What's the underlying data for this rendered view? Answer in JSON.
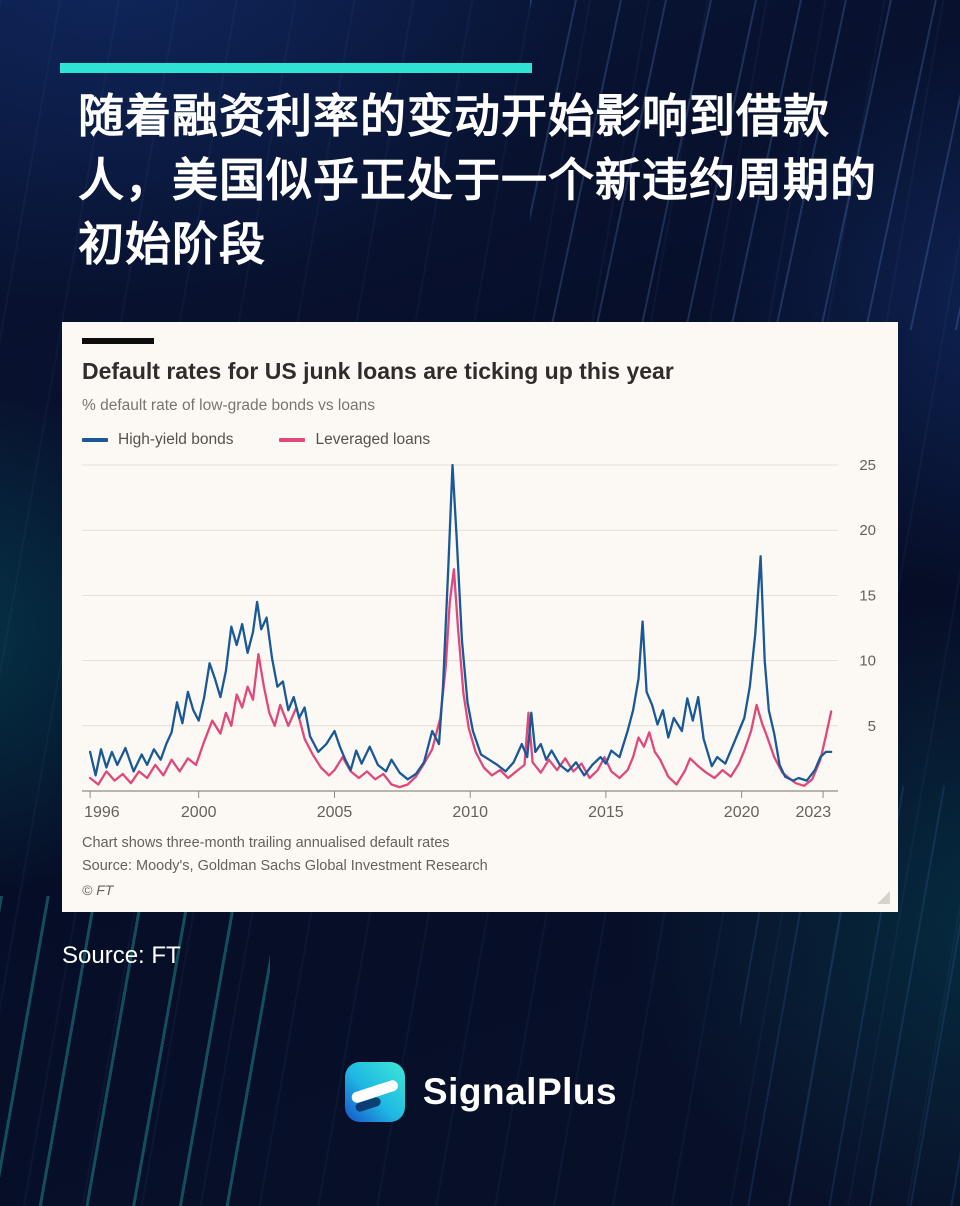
{
  "page": {
    "headline": "随着融资利率的变动开始影响到借款人，美国似乎正处于一个新违约周期的初始阶段",
    "source_caption": "Source: FT",
    "brand": {
      "name": "SignalPlus"
    },
    "accent_color": "#30e2d2",
    "background_color": "#081129"
  },
  "chart_card": {
    "title": "Default rates for US junk loans are ticking up this year",
    "subtitle": "% default rate of low-grade bonds vs loans",
    "footnote_line1": "Chart shows three-month trailing annualised default rates",
    "footnote_line2": "Source: Moody's, Goldman Sachs Global Investment Research",
    "copyright": "© FT",
    "background_color": "#fcf9f5"
  },
  "chart_data": {
    "type": "line",
    "title": "Default rates for US junk loans are ticking up this year",
    "subtitle": "% default rate of low-grade bonds vs loans",
    "xlabel": "",
    "ylabel": "% default rate",
    "xlim": [
      1995.7,
      2023.55
    ],
    "ylim": [
      0,
      25
    ],
    "yticks": [
      5,
      10,
      15,
      20,
      25
    ],
    "xticks": [
      1996,
      2000,
      2005,
      2010,
      2015,
      2020,
      2023
    ],
    "grid": true,
    "legend_position": "top-left",
    "series": [
      {
        "name": "High-yield bonds",
        "color": "#1a5896",
        "x": [
          1996.0,
          1996.2,
          1996.4,
          1996.6,
          1996.8,
          1997.0,
          1997.3,
          1997.6,
          1997.9,
          1998.1,
          1998.35,
          1998.6,
          1998.8,
          1999.0,
          1999.2,
          1999.4,
          1999.6,
          1999.8,
          2000.0,
          2000.2,
          2000.4,
          2000.6,
          2000.8,
          2001.0,
          2001.2,
          2001.4,
          2001.6,
          2001.8,
          2002.0,
          2002.15,
          2002.3,
          2002.5,
          2002.7,
          2002.9,
          2003.1,
          2003.3,
          2003.5,
          2003.7,
          2003.9,
          2004.1,
          2004.4,
          2004.7,
          2005.0,
          2005.2,
          2005.4,
          2005.6,
          2005.8,
          2006.0,
          2006.3,
          2006.6,
          2006.9,
          2007.1,
          2007.4,
          2007.7,
          2008.0,
          2008.3,
          2008.6,
          2008.85,
          2009.0,
          2009.2,
          2009.35,
          2009.5,
          2009.7,
          2009.9,
          2010.1,
          2010.4,
          2010.7,
          2011.0,
          2011.3,
          2011.6,
          2011.9,
          2012.1,
          2012.25,
          2012.4,
          2012.6,
          2012.8,
          2013.0,
          2013.3,
          2013.6,
          2013.9,
          2014.2,
          2014.5,
          2014.8,
          2015.0,
          2015.2,
          2015.5,
          2015.8,
          2016.0,
          2016.2,
          2016.35,
          2016.5,
          2016.7,
          2016.9,
          2017.1,
          2017.3,
          2017.5,
          2017.8,
          2018.0,
          2018.2,
          2018.4,
          2018.6,
          2018.9,
          2019.1,
          2019.4,
          2019.7,
          2019.9,
          2020.1,
          2020.3,
          2020.5,
          2020.7,
          2020.85,
          2021.0,
          2021.2,
          2021.4,
          2021.6,
          2021.9,
          2022.1,
          2022.4,
          2022.7,
          2022.9,
          2023.1,
          2023.3
        ],
        "y": [
          3.0,
          1.2,
          3.2,
          1.8,
          3.0,
          2.0,
          3.3,
          1.5,
          2.8,
          2.0,
          3.2,
          2.4,
          3.6,
          4.5,
          6.8,
          5.2,
          7.6,
          6.2,
          5.4,
          7.2,
          9.8,
          8.6,
          7.2,
          9.2,
          12.6,
          11.2,
          12.8,
          10.6,
          12.2,
          14.5,
          12.4,
          13.3,
          10.2,
          8.0,
          8.4,
          6.2,
          7.2,
          5.6,
          6.4,
          4.2,
          3.0,
          3.6,
          4.6,
          3.4,
          2.4,
          1.6,
          3.1,
          2.1,
          3.4,
          2.0,
          1.5,
          2.4,
          1.4,
          0.9,
          1.3,
          2.2,
          4.6,
          3.6,
          8.0,
          17.5,
          25.0,
          19.5,
          11.5,
          6.8,
          4.6,
          2.8,
          2.4,
          2.0,
          1.5,
          2.2,
          3.6,
          2.6,
          6.0,
          3.0,
          3.6,
          2.4,
          3.1,
          2.0,
          1.5,
          2.2,
          1.2,
          2.0,
          2.6,
          2.1,
          3.1,
          2.6,
          4.6,
          6.2,
          8.6,
          13.0,
          7.6,
          6.6,
          5.1,
          6.2,
          4.1,
          5.6,
          4.6,
          7.1,
          5.4,
          7.2,
          4.0,
          1.9,
          2.6,
          2.1,
          3.6,
          4.6,
          5.6,
          8.0,
          12.0,
          18.0,
          10.0,
          6.2,
          4.4,
          2.0,
          1.1,
          0.8,
          1.0,
          0.8,
          1.6,
          2.6,
          3.0,
          3.0
        ]
      },
      {
        "name": "Leveraged loans",
        "color": "#e0487c",
        "x": [
          1996.0,
          1996.3,
          1996.6,
          1996.9,
          1997.2,
          1997.5,
          1997.8,
          1998.1,
          1998.4,
          1998.7,
          1999.0,
          1999.3,
          1999.6,
          1999.9,
          2000.2,
          2000.5,
          2000.8,
          2001.0,
          2001.2,
          2001.4,
          2001.6,
          2001.8,
          2002.0,
          2002.2,
          2002.4,
          2002.6,
          2002.8,
          2003.0,
          2003.3,
          2003.6,
          2003.9,
          2004.2,
          2004.5,
          2004.8,
          2005.0,
          2005.3,
          2005.6,
          2005.9,
          2006.2,
          2006.5,
          2006.8,
          2007.1,
          2007.4,
          2007.7,
          2008.0,
          2008.3,
          2008.6,
          2008.9,
          2009.1,
          2009.25,
          2009.4,
          2009.55,
          2009.75,
          2009.95,
          2010.2,
          2010.5,
          2010.8,
          2011.1,
          2011.4,
          2011.7,
          2012.0,
          2012.15,
          2012.3,
          2012.6,
          2012.9,
          2013.2,
          2013.5,
          2013.8,
          2014.1,
          2014.4,
          2014.7,
          2014.95,
          2015.2,
          2015.5,
          2015.8,
          2016.0,
          2016.2,
          2016.4,
          2016.6,
          2016.8,
          2017.0,
          2017.3,
          2017.6,
          2017.9,
          2018.1,
          2018.4,
          2018.7,
          2019.0,
          2019.3,
          2019.6,
          2019.9,
          2020.1,
          2020.35,
          2020.55,
          2020.75,
          2020.95,
          2021.2,
          2021.5,
          2021.8,
          2022.0,
          2022.3,
          2022.6,
          2022.9,
          2023.1,
          2023.3
        ],
        "y": [
          1.0,
          0.5,
          1.5,
          0.8,
          1.3,
          0.6,
          1.5,
          1.0,
          2.0,
          1.2,
          2.4,
          1.5,
          2.5,
          2.0,
          3.8,
          5.4,
          4.4,
          6.0,
          5.0,
          7.4,
          6.4,
          8.0,
          7.0,
          10.5,
          8.0,
          6.0,
          5.0,
          6.6,
          5.0,
          6.4,
          4.0,
          2.8,
          1.8,
          1.2,
          1.6,
          2.6,
          1.5,
          1.0,
          1.5,
          0.9,
          1.3,
          0.5,
          0.3,
          0.5,
          1.1,
          2.1,
          3.2,
          5.6,
          9.5,
          14.5,
          17.0,
          12.5,
          7.5,
          4.8,
          3.0,
          1.8,
          1.2,
          1.6,
          1.0,
          1.5,
          2.0,
          6.0,
          2.2,
          1.4,
          2.4,
          1.6,
          2.5,
          1.5,
          2.1,
          1.0,
          1.6,
          2.6,
          1.5,
          1.0,
          1.6,
          2.6,
          4.1,
          3.4,
          4.5,
          3.0,
          2.4,
          1.1,
          0.5,
          1.5,
          2.5,
          1.9,
          1.4,
          1.0,
          1.6,
          1.1,
          2.1,
          3.1,
          4.6,
          6.6,
          5.2,
          4.1,
          2.6,
          1.4,
          0.9,
          0.6,
          0.4,
          0.9,
          2.4,
          4.2,
          6.1
        ]
      }
    ]
  }
}
